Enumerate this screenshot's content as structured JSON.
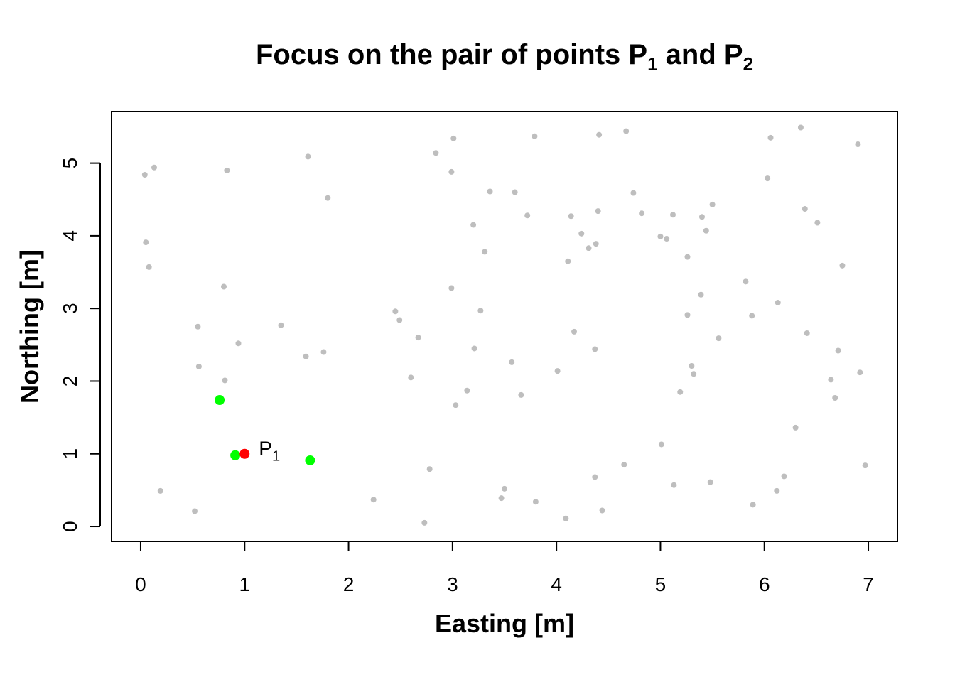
{
  "chart_data": {
    "type": "scatter",
    "title_parts": [
      "Focus on the pair of points P",
      "1",
      " and P",
      "2"
    ],
    "x_label": "Easting [m]",
    "y_label": "Northing [m]",
    "xlim": [
      -0.28,
      7.28
    ],
    "ylim": [
      -0.205,
      5.71
    ],
    "xticks": [
      0,
      1,
      2,
      3,
      4,
      5,
      6,
      7
    ],
    "yticks": [
      0,
      1,
      2,
      3,
      4,
      5
    ],
    "annotation": {
      "text": "P",
      "subscript": "1"
    },
    "series": [
      {
        "color": "#bebebe",
        "x": [
          0.04,
          0.13,
          0.83,
          1.61,
          1.8,
          0.05,
          0.08,
          0.8,
          0.55,
          0.94,
          0.56,
          0.81,
          1.35,
          1.59,
          1.76,
          0.19,
          0.52,
          2.24,
          2.73,
          2.78,
          2.84,
          3.01,
          2.99,
          3.36,
          3.2,
          3.31,
          2.99,
          2.45,
          2.49,
          2.67,
          3.27,
          3.21,
          2.6,
          3.14,
          3.03,
          3.57,
          3.66,
          3.79,
          3.6,
          3.72,
          4.14,
          4.11,
          4.17,
          4.01,
          4.41,
          4.4,
          4.24,
          4.31,
          4.38,
          4.37,
          3.5,
          3.47,
          3.8,
          4.09,
          4.44,
          4.37,
          4.65,
          4.67,
          4.74,
          4.82,
          5.0,
          5.06,
          5.12,
          5.26,
          5.4,
          5.44,
          5.5,
          5.39,
          5.26,
          5.3,
          5.32,
          5.19,
          5.56,
          5.01,
          5.13,
          5.48,
          6.35,
          6.06,
          6.9,
          6.03,
          6.39,
          6.51,
          6.75,
          5.82,
          6.13,
          5.88,
          6.41,
          6.71,
          6.64,
          6.92,
          6.68,
          6.3,
          6.19,
          6.12,
          5.89,
          6.97
        ],
        "values": [
          4.84,
          4.94,
          4.9,
          5.09,
          4.52,
          3.91,
          3.57,
          3.3,
          2.75,
          2.52,
          2.2,
          2.01,
          2.77,
          2.34,
          2.4,
          0.49,
          0.21,
          0.37,
          0.05,
          0.79,
          5.14,
          5.34,
          4.88,
          4.61,
          4.15,
          3.78,
          3.28,
          2.96,
          2.84,
          2.6,
          2.97,
          2.45,
          2.05,
          1.87,
          1.67,
          2.26,
          1.81,
          5.37,
          4.6,
          4.28,
          4.27,
          3.65,
          2.68,
          2.14,
          5.39,
          4.34,
          4.03,
          3.83,
          3.89,
          2.44,
          0.52,
          0.39,
          0.34,
          0.11,
          0.22,
          0.68,
          0.85,
          5.44,
          4.59,
          4.31,
          3.99,
          3.96,
          4.29,
          3.71,
          4.26,
          4.07,
          4.43,
          3.19,
          2.91,
          2.21,
          2.1,
          1.85,
          2.59,
          1.13,
          0.57,
          0.61,
          5.49,
          5.35,
          5.26,
          4.79,
          4.37,
          4.18,
          3.59,
          3.37,
          3.08,
          2.9,
          2.66,
          2.42,
          2.02,
          2.12,
          1.77,
          1.36,
          0.69,
          0.49,
          0.3,
          0.84
        ]
      },
      {
        "color": "#00ff00",
        "x": [
          0.76,
          0.91,
          1.63
        ],
        "values": [
          1.74,
          0.98,
          0.91
        ]
      },
      {
        "color": "#ff0000",
        "x": [
          1.0
        ],
        "values": [
          1.0
        ]
      }
    ]
  }
}
